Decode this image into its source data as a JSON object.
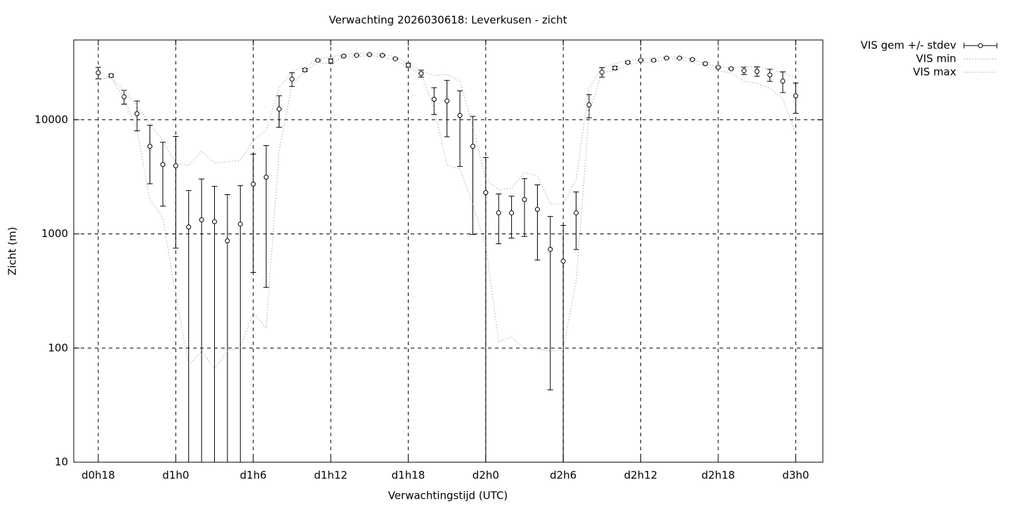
{
  "chart_data": {
    "type": "errorbar",
    "title": "Verwachting 2026030618: Leverkusen - zicht",
    "x_label": "Verwachtingstijd (UTC)",
    "y_label": "Zicht (m)",
    "y_log": true,
    "grid": true,
    "legend": "outside-top-right",
    "xlim": [
      16.1,
      74.1
    ],
    "ylim": [
      10,
      50000
    ],
    "xticks": [
      {
        "value": 18,
        "label": "d0h18"
      },
      {
        "value": 24,
        "label": "d1h0"
      },
      {
        "value": 30,
        "label": "d1h6"
      },
      {
        "value": 36,
        "label": "d1h12"
      },
      {
        "value": 42,
        "label": "d1h18"
      },
      {
        "value": 48,
        "label": "d2h0"
      },
      {
        "value": 54,
        "label": "d2h6"
      },
      {
        "value": 60,
        "label": "d2h12"
      },
      {
        "value": 66,
        "label": "d2h18"
      },
      {
        "value": 72,
        "label": "d3h0"
      }
    ],
    "yticks": [
      10,
      100,
      1000,
      10000
    ],
    "x": [
      18,
      19,
      20,
      21,
      22,
      23,
      24,
      25,
      26,
      27,
      28,
      29,
      30,
      31,
      32,
      33,
      34,
      35,
      36,
      37,
      38,
      39,
      40,
      41,
      42,
      43,
      44,
      45,
      46,
      47,
      48,
      49,
      50,
      51,
      52,
      53,
      54,
      55,
      56,
      57,
      58,
      59,
      60,
      61,
      62,
      63,
      64,
      65,
      66,
      67,
      68,
      69,
      70,
      71,
      72
    ],
    "series": [
      {
        "name": "VIS gem +/- stdev",
        "color": "#000000",
        "values": [
          25800,
          24400,
          15900,
          11300,
          5850,
          4050,
          3950,
          1150,
          1330,
          1280,
          870,
          1220,
          2730,
          3140,
          12400,
          22700,
          27300,
          33200,
          32700,
          36100,
          36700,
          37200,
          36700,
          34200,
          30100,
          25400,
          15100,
          14600,
          10900,
          5850,
          2300,
          1530,
          1530,
          2000,
          1640,
          733,
          577,
          1530,
          13500,
          26100,
          28400,
          31800,
          33200,
          33200,
          34700,
          34700,
          33700,
          31000,
          28800,
          28000,
          26900,
          26500,
          24700,
          21800,
          16200
        ],
        "errors": [
          3000,
          700,
          2200,
          3300,
          3100,
          2300,
          3200,
          1250,
          1700,
          1330,
          1340,
          1430,
          2270,
          2800,
          3800,
          3100,
          800,
          500,
          1500,
          500,
          400,
          300,
          400,
          500,
          1200,
          1800,
          4000,
          7500,
          7000,
          4860,
          2370,
          710,
          610,
          1050,
          1050,
          690,
          610,
          800,
          3100,
          2500,
          1000,
          700,
          400,
          400,
          300,
          300,
          400,
          600,
          300,
          400,
          2000,
          2500,
          3000,
          4500,
          4800
        ]
      },
      {
        "name": "VIS min",
        "color": "#999999",
        "values": [
          22700,
          23300,
          15300,
          8090,
          1970,
          1380,
          292,
          71,
          94,
          66,
          94,
          101,
          205,
          149,
          5300,
          20300,
          26800,
          31800,
          31000,
          35600,
          35600,
          36700,
          35600,
          33200,
          28800,
          25100,
          12400,
          3990,
          3720,
          1830,
          787,
          114,
          125,
          99,
          99,
          94,
          97,
          388,
          11500,
          26100,
          26800,
          30100,
          31800,
          31800,
          33700,
          33700,
          31800,
          29200,
          26800,
          25800,
          21800,
          20800,
          18900,
          15300,
          7530
        ]
      },
      {
        "name": "VIS max",
        "color": "#999999",
        "values": [
          22700,
          23300,
          18100,
          13300,
          9310,
          6550,
          4170,
          3990,
          5300,
          4170,
          4290,
          4410,
          6550,
          8090,
          18900,
          26800,
          28800,
          34200,
          35600,
          37200,
          38300,
          38300,
          37700,
          35600,
          31000,
          26800,
          24400,
          25100,
          21800,
          8690,
          3010,
          2440,
          2510,
          3470,
          3230,
          1830,
          1830,
          3010,
          18900,
          28800,
          31000,
          33200,
          34200,
          34700,
          35600,
          35600,
          34200,
          31000,
          28800,
          28800,
          28800,
          29600,
          27700,
          25800,
          23300
        ]
      }
    ]
  }
}
